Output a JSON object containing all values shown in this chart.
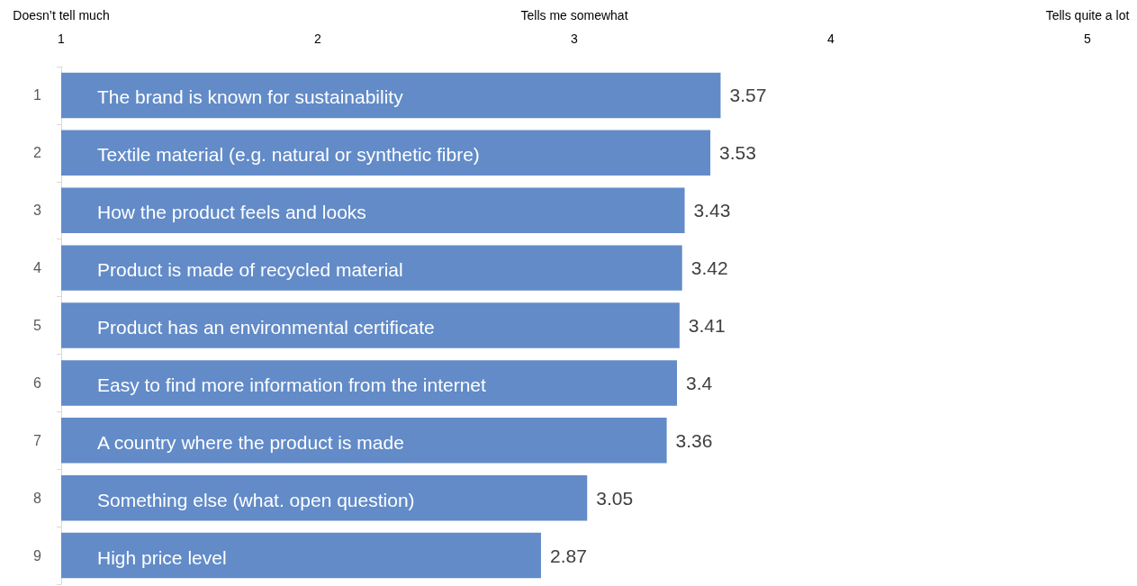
{
  "chart_data": {
    "type": "bar",
    "orientation": "horizontal",
    "categories": [
      "1",
      "2",
      "3",
      "4",
      "5",
      "6",
      "7",
      "8",
      "9"
    ],
    "values": [
      3.57,
      3.53,
      3.43,
      3.42,
      3.41,
      3.4,
      3.36,
      3.05,
      2.87
    ],
    "color": "#628bc8",
    "xlim": [
      1,
      5
    ],
    "xticks": [
      {
        "value": 1,
        "label": "Doesn’t tell much\n1"
      },
      2,
      {
        "value": 3,
        "label": "Tells me somewhat\n3"
      },
      4,
      {
        "value": 5,
        "label": "Tells quite a lot\n5"
      }
    ],
    "data_labels": true,
    "grid": false,
    "annotations": [
      {
        "text": "The brand is known for sustainability",
        "y": "1"
      },
      {
        "text": "Textile material (e.g. natural or synthetic fibre)",
        "y": "2"
      },
      {
        "text": "How the product feels and looks",
        "y": "3"
      },
      {
        "text": "Product is made of recycled material",
        "y": "4"
      },
      {
        "text": "Product has an environmental certificate",
        "y": "5"
      },
      {
        "text": "Easy to find more information from the internet",
        "y": "6"
      },
      {
        "text": "A country where the product is made",
        "y": "7"
      },
      {
        "text": "Something else (what. open question)",
        "y": "8"
      },
      {
        "text": "High price level",
        "y": "9"
      }
    ]
  }
}
